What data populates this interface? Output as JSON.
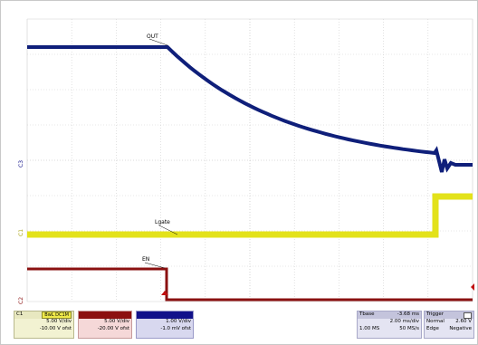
{
  "waveform_labels": {
    "out": "OUT",
    "lgate": "Lgate",
    "en": "EN"
  },
  "channel_markers": {
    "c3": "C3",
    "c1": "C1",
    "c2": "C2"
  },
  "colors": {
    "out_trace": "#0f1f7a",
    "lgate_trace": "#e3e21a",
    "en_trace": "#8a1010",
    "grid": "#cfcfcf",
    "axis": "#b8b8b8"
  },
  "channel_c1": {
    "name": "C1",
    "tag": "BwL DC1M",
    "vdiv": "5.00 V/div",
    "offset": "-10.00 V ofst"
  },
  "channel_c2": {
    "vdiv": "5.00 V/div",
    "offset": "-20.00 V ofst"
  },
  "channel_c3": {
    "vdiv": "1.00 V/div",
    "offset": "-1.0 mV ofst"
  },
  "timebase": {
    "label": "Tbase",
    "offset": "-3.68 ms",
    "scale": "2.00 ms/div",
    "memory": "1.00 MS",
    "rate": "50 MS/s"
  },
  "trigger": {
    "label": "Trigger",
    "mode": "Normal",
    "level": "2.60 V",
    "type": "Edge",
    "slope": "Negative"
  }
}
